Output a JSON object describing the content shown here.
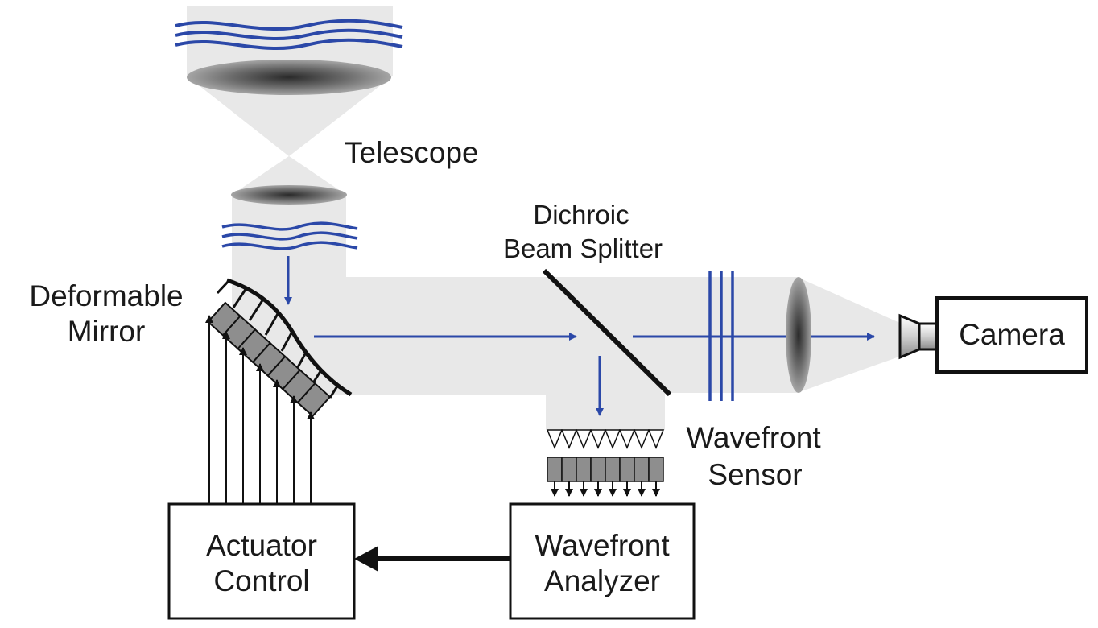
{
  "labels": {
    "telescope": "Telescope",
    "dichroic_line1": "Dichroic",
    "dichroic_line2": "Beam Splitter",
    "deformable_line1": "Deformable",
    "deformable_line2": "Mirror",
    "camera": "Camera",
    "wavefront_sensor_line1": "Wavefront",
    "wavefront_sensor_line2": "Sensor",
    "actuator_line1": "Actuator",
    "actuator_line2": "Control",
    "analyzer_line1": "Wavefront",
    "analyzer_line2": "Analyzer"
  },
  "colors": {
    "beam": "#e8e8e8",
    "wave": "#2b48a8",
    "arrow": "#2b48a8",
    "actuator": "#8e8e8e",
    "outline": "#111111"
  }
}
